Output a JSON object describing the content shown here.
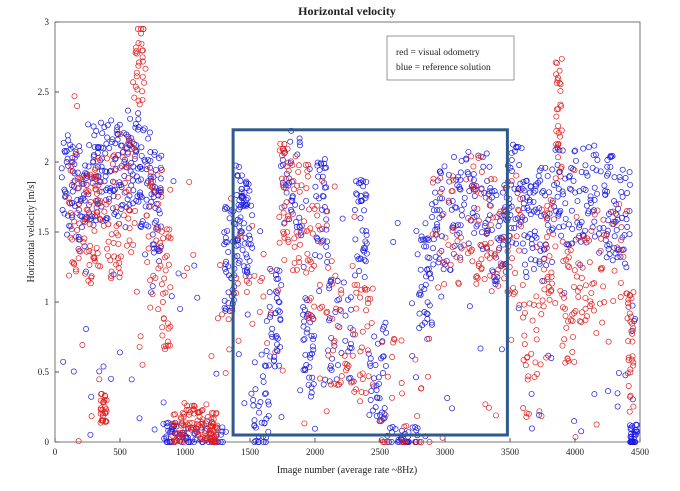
{
  "chart_data": {
    "type": "scatter",
    "title": "Horizontal velocity",
    "xlabel": "Image number (average rate ~8Hz)",
    "ylabel": "Horizontal velocity [m/s]",
    "xlim": [
      0,
      4500
    ],
    "ylim": [
      0,
      3
    ],
    "xticks": [
      "0",
      "500",
      "1000",
      "1500",
      "2000",
      "2500",
      "3000",
      "3500",
      "4000",
      "4500"
    ],
    "yticks": [
      "0",
      "0.5",
      "1",
      "1.5",
      "2",
      "2.5",
      "3"
    ],
    "grid": false,
    "marker": "open-circle",
    "legend": {
      "placement": "top-right",
      "entries": [
        "red = visual odometry",
        "blue = reference solution"
      ]
    },
    "highlight_box": {
      "x": [
        1370,
        3480
      ],
      "y": [
        0.05,
        2.23
      ],
      "color": "#2f5a8a"
    },
    "series": [
      {
        "color": "#e02020",
        "segments": [
          {
            "x": [
              0,
              800
            ],
            "y": [
              1.15,
              2.15
            ],
            "note_outliers": [
              [
                150,
                2.47
              ],
              [
                170,
                2.4
              ],
              [
                620,
                2.78
              ],
              [
                610,
                2.46
              ],
              [
                600,
                2.57
              ]
            ]
          },
          {
            "x": [
              800,
              1280
            ],
            "y": [
              0.0,
              0.2
            ]
          },
          {
            "x": [
              3750,
              3880
            ],
            "y": [
              1.9,
              2.47
            ]
          }
        ],
        "approx_values": [
          [
            100,
            1.65
          ],
          [
            200,
            1.55
          ],
          [
            300,
            1.7
          ],
          [
            350,
            0.25
          ],
          [
            400,
            1.6
          ],
          [
            500,
            1.75
          ],
          [
            620,
            2.78
          ],
          [
            700,
            1.6
          ],
          [
            820,
            1.1
          ],
          [
            900,
            0.1
          ],
          [
            1000,
            0.15
          ],
          [
            1100,
            0.12
          ],
          [
            1200,
            0.1
          ],
          [
            1250,
            1.1
          ],
          [
            1720,
            1.7
          ],
          [
            1800,
            1.6
          ],
          [
            1950,
            1.3
          ],
          [
            2100,
            0.85
          ],
          [
            2300,
            0.7
          ],
          [
            2450,
            0.3
          ],
          [
            2900,
            1.5
          ],
          [
            3150,
            1.6
          ],
          [
            3300,
            1.5
          ],
          [
            3450,
            1.5
          ],
          [
            3600,
            0.6
          ],
          [
            3750,
            1.4
          ],
          [
            3850,
            2.3
          ],
          [
            3900,
            1.0
          ],
          [
            4000,
            1.2
          ],
          [
            4150,
            1.3
          ],
          [
            4400,
            0.65
          ]
        ]
      },
      {
        "color": "#1a1ae0",
        "approx_values": [
          [
            50,
            1.85
          ],
          [
            150,
            1.75
          ],
          [
            250,
            1.9
          ],
          [
            350,
            1.95
          ],
          [
            450,
            1.9
          ],
          [
            550,
            2.05
          ],
          [
            650,
            1.9
          ],
          [
            750,
            1.7
          ],
          [
            820,
            0.05
          ],
          [
            1000,
            0.02
          ],
          [
            1300,
            1.3
          ],
          [
            1380,
            1.6
          ],
          [
            1450,
            1.5
          ],
          [
            1520,
            0.3
          ],
          [
            1650,
            0.9
          ],
          [
            1750,
            1.85
          ],
          [
            1900,
            0.7
          ],
          [
            2000,
            1.65
          ],
          [
            2100,
            0.8
          ],
          [
            2300,
            1.5
          ],
          [
            2400,
            0.5
          ],
          [
            2550,
            0.02
          ],
          [
            2800,
            1.1
          ],
          [
            2900,
            1.6
          ],
          [
            3050,
            1.7
          ],
          [
            3200,
            1.75
          ],
          [
            3350,
            1.5
          ],
          [
            3480,
            1.75
          ],
          [
            3600,
            1.55
          ],
          [
            3700,
            1.6
          ],
          [
            3850,
            1.75
          ],
          [
            4000,
            1.8
          ],
          [
            4150,
            1.7
          ],
          [
            4300,
            1.6
          ],
          [
            4420,
            0.03
          ]
        ]
      }
    ]
  }
}
